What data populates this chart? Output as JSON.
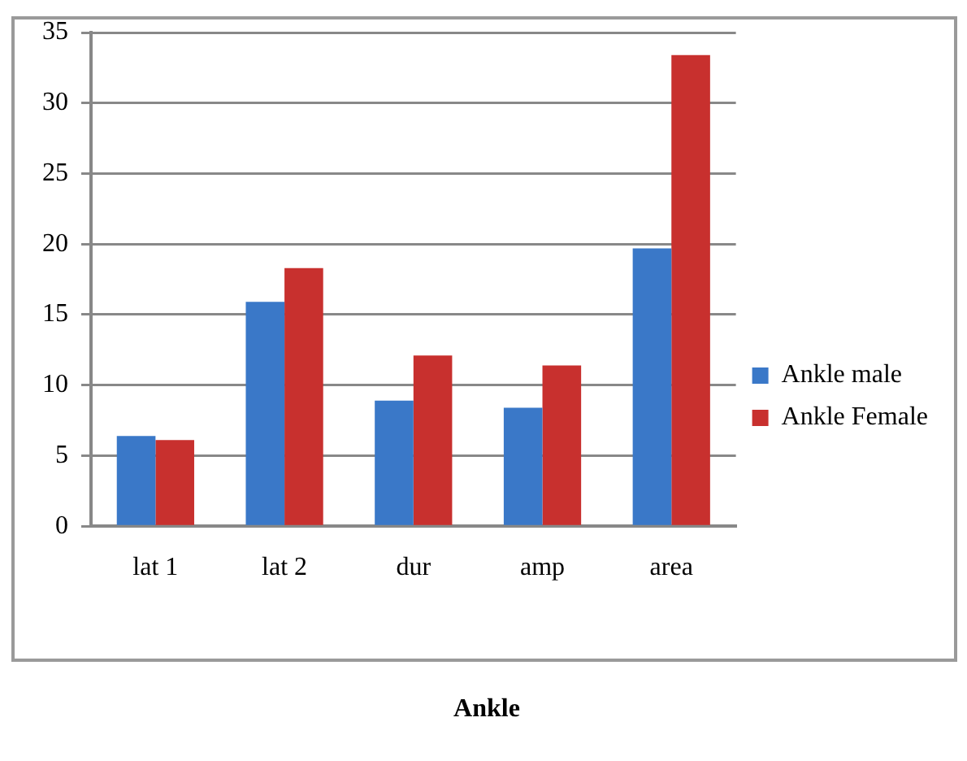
{
  "chart_data": {
    "type": "bar",
    "title": "Ankle",
    "categories": [
      "lat 1",
      "lat 2",
      "dur",
      "amp",
      "area"
    ],
    "series": [
      {
        "name": "Ankle male",
        "color": "#3a78c8",
        "values": [
          6.4,
          15.9,
          8.9,
          8.4,
          19.7
        ]
      },
      {
        "name": "Ankle Female",
        "color": "#c8302e",
        "values": [
          6.1,
          18.3,
          12.1,
          11.4,
          33.4
        ]
      }
    ],
    "ylim": [
      0,
      35
    ],
    "yticks": [
      0,
      5,
      10,
      15,
      20,
      25,
      30,
      35
    ],
    "grid": "y",
    "legend": "right"
  }
}
